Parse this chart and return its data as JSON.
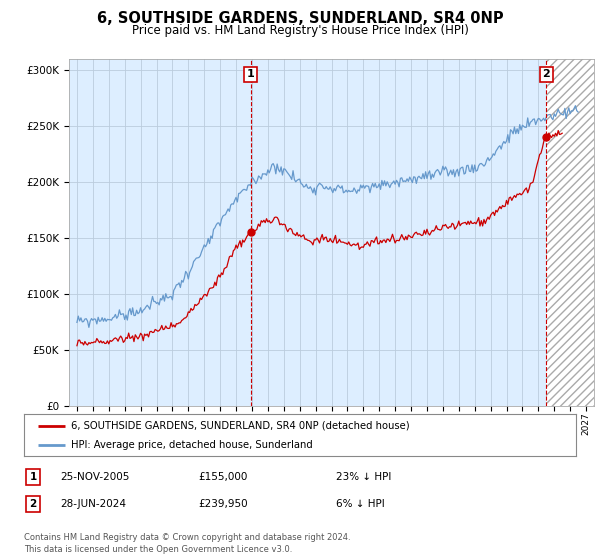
{
  "title": "6, SOUTHSIDE GARDENS, SUNDERLAND, SR4 0NP",
  "subtitle": "Price paid vs. HM Land Registry's House Price Index (HPI)",
  "background_color": "#ffffff",
  "plot_bg_color": "#ddeeff",
  "grid_color": "#bbccdd",
  "hpi_color": "#6699cc",
  "price_color": "#cc0000",
  "sale1_date": "25-NOV-2005",
  "sale1_price": 155000,
  "sale1_pct": "23% ↓ HPI",
  "sale2_date": "28-JUN-2024",
  "sale2_price": 239950,
  "sale2_pct": "6% ↓ HPI",
  "legend_label1": "6, SOUTHSIDE GARDENS, SUNDERLAND, SR4 0NP (detached house)",
  "legend_label2": "HPI: Average price, detached house, Sunderland",
  "footer": "Contains HM Land Registry data © Crown copyright and database right 2024.\nThis data is licensed under the Open Government Licence v3.0.",
  "ylim": [
    0,
    310000
  ],
  "xlim_start": 1994.5,
  "xlim_end": 2027.5,
  "sale1_x": 2005.9167,
  "sale2_x": 2024.5,
  "hpi_seed": 42,
  "price_seed": 99
}
